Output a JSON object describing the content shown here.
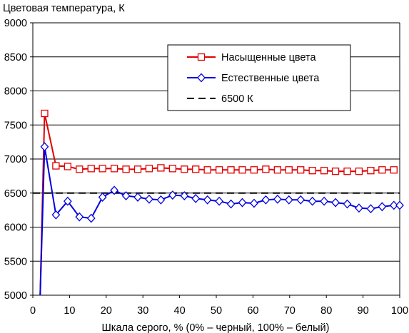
{
  "chart_data": {
    "type": "line",
    "title": "",
    "ylabel": "Цветовая температура, К",
    "xlabel": "Шкала серого, % (0% – черный, 100% – белый)",
    "xlim": [
      0,
      100
    ],
    "ylim": [
      5000,
      9000
    ],
    "xticks": [
      "0",
      "10",
      "20",
      "30",
      "40",
      "50",
      "60",
      "70",
      "80",
      "90",
      "100"
    ],
    "yticks": [
      "5000",
      "5500",
      "6000",
      "6500",
      "7000",
      "7500",
      "8000",
      "8500",
      "9000"
    ],
    "grid": "horizontal",
    "legend_position": "top-right",
    "series": [
      {
        "name": "Насыщенные цвета",
        "color": "#e00000",
        "marker": "square",
        "x": [
          2,
          3.2,
          6.3,
          9.5,
          12.7,
          15.9,
          19,
          22.2,
          25.4,
          28.6,
          31.7,
          34.9,
          38.1,
          41.3,
          44.4,
          47.6,
          50.8,
          54,
          57.1,
          60.3,
          63.5,
          66.7,
          69.8,
          73,
          76.2,
          79.4,
          82.5,
          85.7,
          88.9,
          92.1,
          95.2,
          98.4
        ],
        "y": [
          5000,
          7670,
          6900,
          6890,
          6850,
          6860,
          6860,
          6860,
          6850,
          6850,
          6860,
          6870,
          6860,
          6850,
          6850,
          6840,
          6840,
          6840,
          6840,
          6840,
          6850,
          6840,
          6840,
          6840,
          6830,
          6830,
          6820,
          6820,
          6820,
          6830,
          6840,
          6840
        ]
      },
      {
        "name": "Естественные цвета",
        "color": "#0000e0",
        "marker": "diamond",
        "x": [
          2,
          3.2,
          6.3,
          9.5,
          12.7,
          15.9,
          19,
          22.2,
          25.4,
          28.6,
          31.7,
          34.9,
          38.1,
          41.3,
          44.4,
          47.6,
          50.8,
          54,
          57.1,
          60.3,
          63.5,
          66.7,
          69.8,
          73,
          76.2,
          79.4,
          82.5,
          85.7,
          88.9,
          92.1,
          95.2,
          98.4,
          100
        ],
        "y": [
          5000,
          7180,
          6180,
          6380,
          6150,
          6130,
          6440,
          6540,
          6460,
          6440,
          6410,
          6400,
          6470,
          6460,
          6420,
          6400,
          6380,
          6340,
          6360,
          6350,
          6400,
          6410,
          6400,
          6400,
          6380,
          6380,
          6360,
          6340,
          6280,
          6270,
          6300,
          6320,
          6320
        ]
      },
      {
        "name": "6500 К",
        "color": "#000000",
        "dash": "dashed",
        "x": [
          0,
          100
        ],
        "y": [
          6500,
          6500
        ]
      }
    ]
  }
}
